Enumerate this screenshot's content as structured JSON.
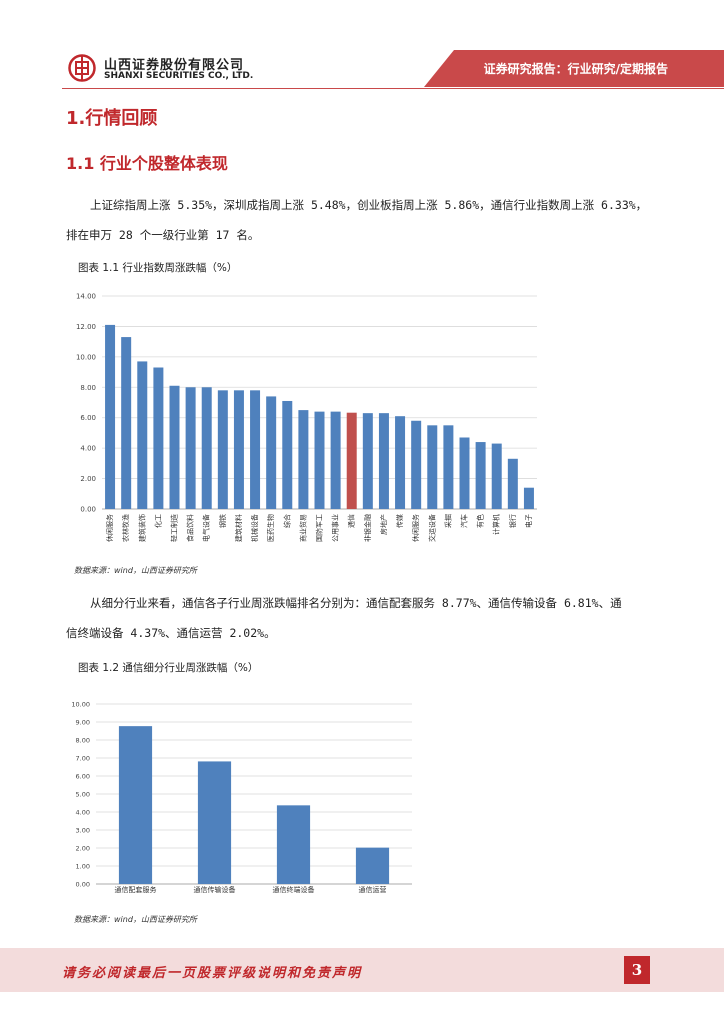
{
  "header": {
    "company_cn": "山西证券股份有限公司",
    "company_en": "SHANXI SECURITIES CO., LTD.",
    "banner": "证券研究报告：行业研究/定期报告",
    "logo": "shanxi-securities-logo",
    "brand_color": "#c0282c"
  },
  "section": {
    "h1": "1.行情回顾",
    "h2": "1.1 行业个股整体表现",
    "para1_line1": "上证综指周上涨 5.35%，深圳成指周上涨 5.48%，创业板指周上涨 5.86%，通信行业指数周上涨 6.33%，",
    "para1_line2": "排在申万 28 个一级行业第 17 名。",
    "para2_line1": "从细分行业来看，通信各子行业周涨跌幅排名分别为：通信配套服务 8.77%、通信传输设备 6.81%、通",
    "para2_line2": "信终端设备 4.37%、通信运营 2.02%。"
  },
  "fig1": {
    "title": "图表 1.1  行业指数周涨跌幅（%）",
    "source": "数据来源：wind，山西证券研究所"
  },
  "fig2": {
    "title": "图表 1.2    通信细分行业周涨跌幅（%）",
    "source": "数据来源：wind，山西证券研究所"
  },
  "chart_data": [
    {
      "type": "bar",
      "title": "行业指数周涨跌幅（%）",
      "categories": [
        "休闲服务",
        "农林牧渔",
        "建筑装饰",
        "化工",
        "轻工制造",
        "食品饮料",
        "电气设备",
        "钢铁",
        "建筑材料",
        "机械设备",
        "医药生物",
        "综合",
        "商业贸易",
        "国防军工",
        "公用事业",
        "通信",
        "非银金融",
        "房地产",
        "传媒",
        "休闲服务",
        "交运设备",
        "采掘",
        "汽车",
        "有色",
        "计算机",
        "银行",
        "电子"
      ],
      "values": [
        12.1,
        11.3,
        9.7,
        9.3,
        8.1,
        8.0,
        8.0,
        7.8,
        7.8,
        7.8,
        7.4,
        7.1,
        6.5,
        6.4,
        6.4,
        6.33,
        6.3,
        6.3,
        6.1,
        5.8,
        5.5,
        5.5,
        4.7,
        4.4,
        4.3,
        3.3,
        1.4
      ],
      "highlight_index": 15,
      "bar_color": "#4f81bd",
      "highlight_color": "#c0504d",
      "yticks": [
        "0.00",
        "2.00",
        "4.00",
        "6.00",
        "8.00",
        "10.00",
        "12.00",
        "14.00"
      ],
      "ylim": [
        0,
        14
      ],
      "grid": true
    },
    {
      "type": "bar",
      "title": "通信细分行业周涨跌幅（%）",
      "categories": [
        "通信配套服务",
        "通信传输设备",
        "通信终端设备",
        "通信运营"
      ],
      "values": [
        8.77,
        6.81,
        4.37,
        2.02
      ],
      "bar_color": "#4f81bd",
      "yticks": [
        "0.00",
        "1.00",
        "2.00",
        "3.00",
        "4.00",
        "5.00",
        "6.00",
        "7.00",
        "8.00",
        "9.00",
        "10.00"
      ],
      "ylim": [
        0,
        10
      ],
      "grid": true
    }
  ],
  "footer": {
    "disclaimer": "请务必阅读最后一页股票评级说明和免责声明",
    "page": "3"
  }
}
